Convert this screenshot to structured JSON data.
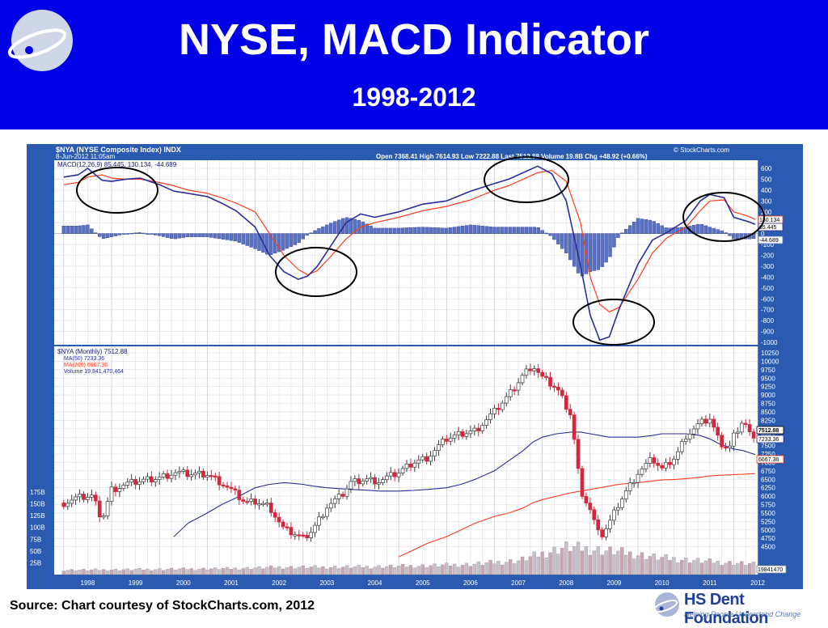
{
  "slide": {
    "title": "NYSE, MACD Indicator",
    "subtitle": "1998-2012",
    "source": "Source: Chart courtesy of StockCharts.com, 2012",
    "brand_name": "HS Dent Foundation",
    "brand_tagline": "Helping People Understand Change",
    "colors": {
      "header": "#0000e6",
      "frame": "#2a5bb0",
      "macd": "#2b2e9a",
      "signal": "#ff3b1e",
      "histogram": "#5a72c4",
      "up_candle": "#3a3a3a",
      "down_candle": "#d0283c",
      "ma50": "#2b2e9a",
      "ma200": "#ff3b1e",
      "volume": "#b9a9b5"
    }
  },
  "stock": {
    "symbol_line": "$NYA (NYSE Composite Index) INDX",
    "watermark": "© StockCharts.com",
    "date_line": "8-Jun-2012 11:05am",
    "quote_line": "Open 7368.41  High 7614.93  Low 7222.88  Last 7512.88  Volume 19.8B  Chg +48.92 (+0.66%)",
    "macd_legend": "MACD(12,26,9) 85.445, 130.134, -44.689",
    "price_legend": "$NYA (Monthly) 7512.88",
    "ma50_legend": "MA(50) 7233.36",
    "ma200_legend": "MA(200) 6667.36",
    "volume_legend": "Volume 19,841,470,464",
    "macd_tags": [
      "130.134",
      "85.445",
      "-44.689"
    ],
    "price_tags": [
      "7512.88",
      "7233.36",
      "6667.36"
    ],
    "volume_tag": "19841470"
  },
  "chart_data": [
    {
      "type": "line",
      "title": "MACD(12,26,9)",
      "x": [
        1998.0,
        1998.3,
        1998.5,
        1998.8,
        1999.0,
        1999.3,
        1999.6,
        2000.0,
        2000.3,
        2000.6,
        2001.0,
        2001.3,
        2001.6,
        2002.0,
        2002.3,
        2002.6,
        2002.9,
        2003.1,
        2003.3,
        2003.6,
        2003.9,
        2004.2,
        2004.5,
        2005.0,
        2005.5,
        2006.0,
        2006.5,
        2007.0,
        2007.3,
        2007.6,
        2007.9,
        2008.2,
        2008.5,
        2008.8,
        2009.0,
        2009.2,
        2009.4,
        2009.6,
        2010.0,
        2010.3,
        2010.6,
        2011.0,
        2011.3,
        2011.5,
        2011.8,
        2012.0,
        2012.3,
        2012.45
      ],
      "series": [
        {
          "name": "MACD",
          "values": [
            520,
            540,
            600,
            490,
            480,
            500,
            510,
            450,
            390,
            370,
            340,
            280,
            210,
            60,
            -200,
            -350,
            -420,
            -390,
            -300,
            -100,
            100,
            180,
            150,
            200,
            270,
            300,
            390,
            460,
            500,
            560,
            620,
            550,
            300,
            -300,
            -750,
            -980,
            -950,
            -700,
            -280,
            -60,
            10,
            120,
            300,
            360,
            330,
            150,
            110,
            85
          ]
        },
        {
          "name": "Signal",
          "values": [
            450,
            470,
            520,
            540,
            510,
            500,
            500,
            470,
            440,
            400,
            370,
            330,
            280,
            200,
            0,
            -200,
            -330,
            -380,
            -340,
            -200,
            -50,
            60,
            100,
            150,
            210,
            250,
            310,
            400,
            440,
            500,
            560,
            580,
            480,
            100,
            -400,
            -650,
            -720,
            -680,
            -420,
            -180,
            -40,
            60,
            210,
            300,
            310,
            200,
            160,
            130
          ]
        },
        {
          "name": "Histogram",
          "values": [
            70,
            70,
            80,
            -50,
            -30,
            0,
            10,
            -20,
            -50,
            -30,
            -30,
            -50,
            -70,
            -140,
            -200,
            -150,
            -90,
            -10,
            40,
            100,
            150,
            120,
            50,
            50,
            60,
            50,
            80,
            60,
            60,
            60,
            60,
            -30,
            -180,
            -400,
            -350,
            -330,
            -230,
            -20,
            140,
            120,
            50,
            60,
            90,
            60,
            20,
            -50,
            -50,
            -45
          ]
        }
      ],
      "xlim": [
        1997.8,
        2012.5
      ],
      "ylim": [
        -1000,
        600
      ],
      "y_ticks": [
        600,
        500,
        400,
        300,
        200,
        100,
        0,
        -100,
        -200,
        -300,
        -400,
        -500,
        -600,
        -700,
        -800,
        -900,
        -1000
      ]
    },
    {
      "type": "line",
      "title": "$NYA (Monthly)",
      "x": [
        1998.0,
        1998.3,
        1998.6,
        1998.8,
        1999.0,
        1999.3,
        1999.6,
        2000.0,
        2000.3,
        2000.6,
        2001.0,
        2001.3,
        2001.6,
        2001.8,
        2002.0,
        2002.3,
        2002.6,
        2002.8,
        2003.0,
        2003.2,
        2003.5,
        2003.8,
        2004.0,
        2004.3,
        2004.6,
        2005.0,
        2005.3,
        2005.6,
        2006.0,
        2006.3,
        2006.6,
        2007.0,
        2007.3,
        2007.6,
        2007.8,
        2008.0,
        2008.3,
        2008.6,
        2008.8,
        2009.0,
        2009.2,
        2009.4,
        2009.6,
        2010.0,
        2010.3,
        2010.5,
        2010.8,
        2011.0,
        2011.3,
        2011.5,
        2011.7,
        2011.9,
        2012.0,
        2012.2,
        2012.3,
        2012.45
      ],
      "series": [
        {
          "name": "$NYA",
          "values": [
            5800,
            5950,
            6000,
            5300,
            6200,
            6350,
            6450,
            6550,
            6700,
            6650,
            6650,
            6400,
            6050,
            5800,
            5850,
            5700,
            5000,
            4900,
            4750,
            5000,
            5700,
            6000,
            6400,
            6500,
            6450,
            6700,
            7000,
            7150,
            7700,
            7850,
            7950,
            8500,
            9000,
            9600,
            9900,
            9500,
            9200,
            8400,
            6200,
            5600,
            4750,
            5200,
            5800,
            6700,
            7100,
            6800,
            7200,
            7800,
            8150,
            8300,
            7600,
            7400,
            7800,
            8300,
            7950,
            7512.88
          ]
        },
        {
          "name": "MA(50)",
          "values": [
            null,
            null,
            null,
            null,
            null,
            null,
            null,
            null,
            4800,
            5200,
            5500,
            5750,
            5950,
            6100,
            6250,
            6350,
            6400,
            6380,
            6350,
            6300,
            6250,
            6220,
            6200,
            6180,
            6150,
            6150,
            6170,
            6200,
            6250,
            6350,
            6500,
            6750,
            7050,
            7350,
            7600,
            7750,
            7850,
            7900,
            7900,
            7850,
            7800,
            7750,
            7750,
            7750,
            7800,
            7850,
            7850,
            7850,
            7800,
            7700,
            7550,
            7450,
            7400,
            7350,
            7300,
            7233.36
          ]
        },
        {
          "name": "MA(200)",
          "values": [
            null,
            null,
            null,
            null,
            null,
            null,
            null,
            null,
            null,
            null,
            null,
            null,
            null,
            null,
            null,
            null,
            null,
            null,
            null,
            null,
            null,
            null,
            null,
            null,
            null,
            4200,
            4400,
            4600,
            4800,
            5000,
            5200,
            5400,
            5500,
            5650,
            5800,
            5900,
            6000,
            6100,
            6150,
            6200,
            6250,
            6300,
            6350,
            6400,
            6450,
            6480,
            6500,
            6520,
            6560,
            6600,
            6620,
            6630,
            6640,
            6650,
            6660,
            6667.36
          ]
        }
      ],
      "xlim": [
        1997.8,
        2012.5
      ],
      "ylim": [
        4250,
        10250
      ],
      "y_ticks": [
        10250,
        10000,
        9750,
        9500,
        9250,
        9000,
        8750,
        8500,
        8250,
        8000,
        7750,
        7500,
        7250,
        7000,
        6750,
        6500,
        6250,
        6000,
        5750,
        5500,
        5250,
        5000,
        4750,
        4500
      ]
    },
    {
      "type": "bar",
      "title": "Volume",
      "x": [
        1998,
        1999,
        2000,
        2001,
        2002,
        2003,
        2004,
        2005,
        2006,
        2007,
        2008,
        2009,
        2010,
        2011,
        2012
      ],
      "values": [
        10,
        11,
        12,
        13,
        16,
        16,
        17,
        19,
        22,
        30,
        60,
        50,
        36,
        28,
        22
      ],
      "ylim": [
        0,
        175
      ],
      "y_ticks": [
        "175B",
        "150B",
        "125B",
        "100B",
        "75B",
        "50B",
        "25B"
      ]
    }
  ],
  "x_axis": {
    "labels": [
      "1998",
      "1999",
      "2000",
      "2001",
      "2002",
      "2003",
      "2004",
      "2005",
      "2006",
      "2007",
      "2008",
      "2009",
      "2010",
      "2011",
      "2012"
    ]
  }
}
